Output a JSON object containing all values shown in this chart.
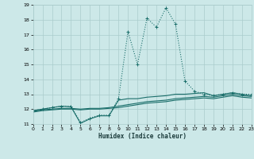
{
  "xlabel": "Humidex (Indice chaleur)",
  "background_color": "#cce8e8",
  "grid_color": "#aacccc",
  "line_color": "#1a6e6a",
  "xlim": [
    0,
    23
  ],
  "ylim": [
    11,
    19
  ],
  "xticks": [
    0,
    1,
    2,
    3,
    4,
    5,
    6,
    7,
    8,
    9,
    10,
    11,
    12,
    13,
    14,
    15,
    16,
    17,
    18,
    19,
    20,
    21,
    22,
    23
  ],
  "yticks": [
    11,
    12,
    13,
    14,
    15,
    16,
    17,
    18,
    19
  ],
  "series": [
    {
      "x": [
        0,
        1,
        2,
        3,
        4,
        5,
        6,
        7,
        8,
        9,
        10,
        11,
        12,
        13,
        14,
        15,
        16,
        17,
        18,
        19,
        20,
        21,
        22,
        23
      ],
      "y": [
        11.9,
        12.0,
        12.1,
        12.2,
        12.2,
        11.1,
        11.4,
        11.6,
        11.6,
        12.7,
        17.2,
        15.0,
        18.1,
        17.5,
        18.8,
        17.7,
        13.9,
        13.2,
        13.0,
        12.9,
        13.0,
        13.1,
        13.0,
        13.0
      ],
      "marker": true,
      "linestyle": "dotted",
      "linewidth": 0.8
    },
    {
      "x": [
        0,
        1,
        2,
        3,
        4,
        5,
        6,
        7,
        8,
        9,
        10,
        11,
        12,
        13,
        14,
        15,
        16,
        17,
        18,
        19,
        20,
        21,
        22,
        23
      ],
      "y": [
        11.9,
        12.0,
        12.1,
        12.2,
        12.15,
        11.05,
        11.35,
        11.55,
        11.55,
        12.6,
        12.7,
        12.7,
        12.8,
        12.85,
        12.9,
        13.0,
        13.0,
        13.05,
        13.1,
        12.9,
        13.0,
        13.1,
        13.0,
        12.9
      ],
      "marker": false,
      "linestyle": "solid",
      "linewidth": 0.8
    },
    {
      "x": [
        0,
        1,
        2,
        3,
        4,
        5,
        6,
        7,
        8,
        9,
        10,
        11,
        12,
        13,
        14,
        15,
        16,
        17,
        18,
        19,
        20,
        21,
        22,
        23
      ],
      "y": [
        11.85,
        11.95,
        12.0,
        12.05,
        12.05,
        12.0,
        12.05,
        12.05,
        12.1,
        12.2,
        12.3,
        12.4,
        12.5,
        12.55,
        12.6,
        12.7,
        12.75,
        12.8,
        12.85,
        12.8,
        12.9,
        13.0,
        12.9,
        12.85
      ],
      "marker": false,
      "linestyle": "solid",
      "linewidth": 0.8
    },
    {
      "x": [
        0,
        1,
        2,
        3,
        4,
        5,
        6,
        7,
        8,
        9,
        10,
        11,
        12,
        13,
        14,
        15,
        16,
        17,
        18,
        19,
        20,
        21,
        22,
        23
      ],
      "y": [
        11.8,
        11.9,
        11.95,
        12.0,
        12.0,
        11.95,
        12.0,
        12.0,
        12.05,
        12.1,
        12.2,
        12.3,
        12.4,
        12.45,
        12.5,
        12.6,
        12.65,
        12.7,
        12.75,
        12.7,
        12.8,
        12.9,
        12.8,
        12.75
      ],
      "marker": false,
      "linestyle": "solid",
      "linewidth": 0.8
    }
  ]
}
